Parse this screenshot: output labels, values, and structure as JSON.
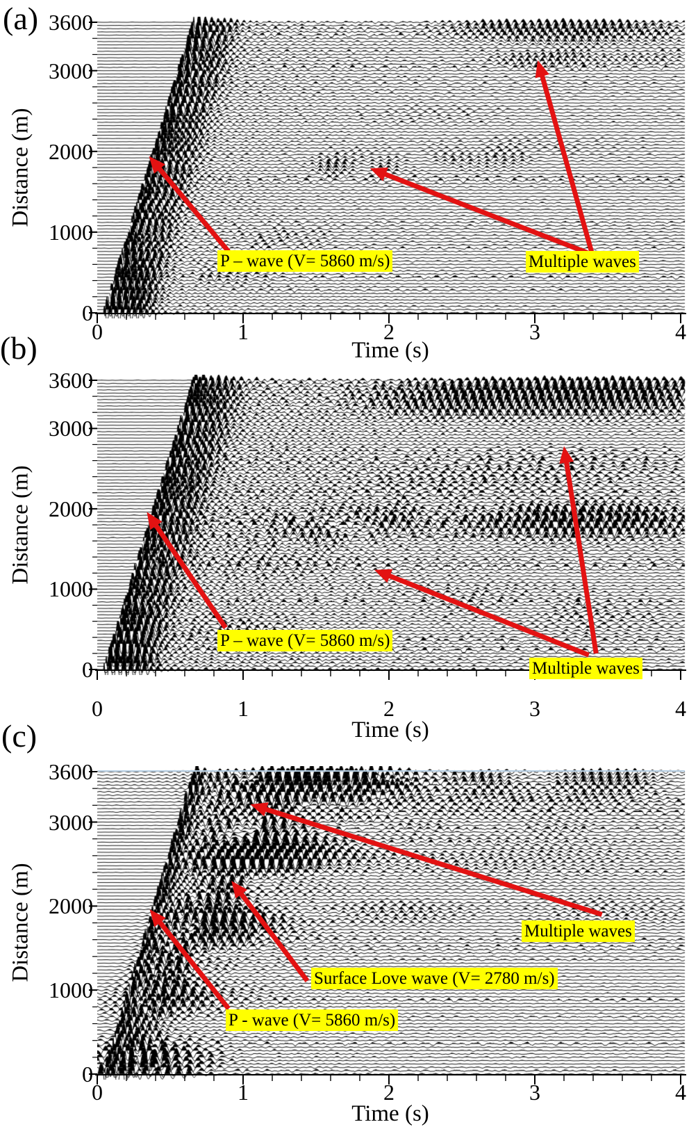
{
  "figure": {
    "background": "#ffffff",
    "trace_color": "#000000",
    "arrow_color": "#e31212",
    "highlight_color": "#ffff00",
    "panels": [
      {
        "label": "(a)",
        "x_axis": {
          "title": "Time (s)",
          "ticks": [
            "0",
            "1",
            "2",
            "3",
            "4"
          ]
        },
        "y_axis": {
          "title": "Distance (m)",
          "ticks": [
            "3600",
            "3000",
            "2000",
            "1000",
            "0"
          ]
        },
        "annotations": [
          {
            "id": "p-wave",
            "text": "P – wave (V= 5860 m/s)",
            "arrows": [
              {
                "tail": [
                  0.9,
                  760
                ],
                "tip": [
                  0.355,
                  1940
                ]
              }
            ]
          },
          {
            "id": "multiple-waves",
            "text": "Multiple waves",
            "arrows": [
              {
                "tail": [
                  3.36,
                  745
                ],
                "tip": [
                  1.87,
                  1790
                ]
              },
              {
                "tail": [
                  3.39,
                  750
                ],
                "tip": [
                  3.02,
                  3130
                ]
              }
            ]
          }
        ]
      },
      {
        "label": "(b)",
        "x_axis": {
          "title": "Time (s)",
          "ticks": [
            "0",
            "1",
            "2",
            "3",
            "4"
          ]
        },
        "y_axis": {
          "title": "Distance (m)",
          "ticks": [
            "3600",
            "3000",
            "2000",
            "1000",
            "0"
          ]
        },
        "annotations": [
          {
            "id": "p-wave",
            "text": "P – wave (V= 5860 m/s)",
            "arrows": [
              {
                "tail": [
                  0.88,
                  520
                ],
                "tip": [
                  0.34,
                  1960
                ]
              }
            ]
          },
          {
            "id": "multiple-waves",
            "text": "Multiple waves",
            "arrows": [
              {
                "tail": [
                  3.37,
                  180
                ],
                "tip": [
                  1.9,
                  1240
                ]
              },
              {
                "tail": [
                  3.42,
                  200
                ],
                "tip": [
                  3.2,
                  2780
                ]
              }
            ]
          }
        ]
      },
      {
        "label": "(c)",
        "x_axis": {
          "title": "Time (s)",
          "ticks": [
            "0",
            "1",
            "2",
            "3",
            "4"
          ]
        },
        "y_axis": {
          "title": "Distance (m)",
          "ticks": [
            "3600",
            "3000",
            "2000",
            "1000",
            "0"
          ]
        },
        "annotations": [
          {
            "id": "multiple-waves",
            "text": "Multiple waves",
            "arrows": [
              {
                "tail": [
                  3.46,
                  1900
                ],
                "tip": [
                  1.05,
                  3210
                ]
              }
            ]
          },
          {
            "id": "surface-love-wave",
            "text": "Surface Love wave (V= 2780 m/s)",
            "arrows": [
              {
                "tail": [
                  1.44,
                  1110
                ],
                "tip": [
                  0.92,
                  2300
                ]
              }
            ]
          },
          {
            "id": "p-wave",
            "text": "P - wave (V= 5860 m/s)",
            "arrows": [
              {
                "tail": [
                  0.9,
                  780
                ],
                "tip": [
                  0.36,
                  1960
                ]
              }
            ]
          }
        ]
      }
    ]
  },
  "chart_data": [
    {
      "type": "line",
      "variant": "seismic_wiggle_record_section",
      "panel": "(a)",
      "title": "",
      "xlabel": "Time (s)",
      "ylabel": "Distance (m)",
      "xlim": [
        0,
        4
      ],
      "ylim": [
        0,
        3600
      ],
      "x_ticks": [
        0,
        1,
        2,
        3,
        4
      ],
      "y_ticks": [
        0,
        1000,
        2000,
        3000,
        3600
      ],
      "x_minor_tick_step": 0.2,
      "y_minor_tick_step": 200,
      "grid": false,
      "legend": "none",
      "num_traces": 91,
      "trace_spacing_m": 40,
      "series": [
        {
          "name": "P-wave direct arrival",
          "velocity_m_per_s": 5860,
          "moveout_line": {
            "x": [
              0,
              0.614
            ],
            "y": [
              0,
              3600
            ]
          }
        },
        {
          "name": "Multiple waves",
          "packets": [
            {
              "time_s": [
                1.7,
                2.6
              ],
              "distance_m": [
                1700,
                2000
              ]
            },
            {
              "time_s": [
                2.6,
                4.0
              ],
              "distance_m": [
                3050,
                3600
              ]
            }
          ]
        }
      ],
      "annotations": [
        {
          "text": "P – wave (V= 5860 m/s)",
          "points_to": [
            {
              "time_s": 0.36,
              "distance_m": 1940
            }
          ]
        },
        {
          "text": "Multiple waves",
          "points_to": [
            {
              "time_s": 1.87,
              "distance_m": 1790
            },
            {
              "time_s": 3.02,
              "distance_m": 3130
            }
          ]
        }
      ]
    },
    {
      "type": "line",
      "variant": "seismic_wiggle_record_section",
      "panel": "(b)",
      "title": "",
      "xlabel": "Time (s)",
      "ylabel": "Distance (m)",
      "xlim": [
        0,
        4
      ],
      "ylim": [
        0,
        3600
      ],
      "x_ticks": [
        0,
        1,
        2,
        3,
        4
      ],
      "y_ticks": [
        0,
        1000,
        2000,
        3000,
        3600
      ],
      "x_minor_tick_step": 0.2,
      "y_minor_tick_step": 200,
      "grid": false,
      "legend": "none",
      "num_traces": 91,
      "trace_spacing_m": 40,
      "series": [
        {
          "name": "P-wave direct arrival",
          "velocity_m_per_s": 5860,
          "moveout_line": {
            "x": [
              0,
              0.614
            ],
            "y": [
              0,
              3600
            ]
          }
        },
        {
          "name": "Multiple waves",
          "packets": [
            {
              "time_s": [
                1.4,
                4.0
              ],
              "distance_m": [
                1550,
                2050
              ]
            },
            {
              "time_s": [
                2.2,
                4.0
              ],
              "distance_m": [
                3100,
                3600
              ]
            }
          ]
        }
      ],
      "annotations": [
        {
          "text": "P – wave (V= 5860 m/s)",
          "points_to": [
            {
              "time_s": 0.34,
              "distance_m": 1960
            }
          ]
        },
        {
          "text": "Multiple waves",
          "points_to": [
            {
              "time_s": 1.9,
              "distance_m": 1240
            },
            {
              "time_s": 3.2,
              "distance_m": 2780
            }
          ]
        }
      ]
    },
    {
      "type": "line",
      "variant": "seismic_wiggle_record_section",
      "panel": "(c)",
      "title": "",
      "xlabel": "Time (s)",
      "ylabel": "Distance (m)",
      "xlim": [
        0,
        4
      ],
      "ylim": [
        0,
        3600
      ],
      "x_ticks": [
        0,
        1,
        2,
        3,
        4
      ],
      "y_ticks": [
        0,
        1000,
        2000,
        3000,
        3600
      ],
      "x_minor_tick_step": 0.2,
      "y_minor_tick_step": 200,
      "grid": false,
      "legend": "none",
      "num_traces": 91,
      "trace_spacing_m": 40,
      "series": [
        {
          "name": "P-wave direct arrival",
          "velocity_m_per_s": 5860,
          "moveout_line": {
            "x": [
              0,
              0.614
            ],
            "y": [
              0,
              3600
            ]
          }
        },
        {
          "name": "Surface Love wave",
          "velocity_m_per_s": 2780,
          "moveout_line": {
            "x": [
              0,
              1.295
            ],
            "y": [
              0,
              3600
            ]
          }
        },
        {
          "name": "Multiple waves",
          "packets": [
            {
              "time_s": [
                0.8,
                4.0
              ],
              "distance_m": [
                3000,
                3600
              ]
            }
          ]
        }
      ],
      "annotations": [
        {
          "text": "Multiple waves",
          "points_to": [
            {
              "time_s": 1.05,
              "distance_m": 3210
            }
          ]
        },
        {
          "text": "Surface Love wave (V= 2780 m/s)",
          "points_to": [
            {
              "time_s": 0.92,
              "distance_m": 2300
            }
          ]
        },
        {
          "text": "P - wave (V= 5860 m/s)",
          "points_to": [
            {
              "time_s": 0.36,
              "distance_m": 1960
            }
          ]
        }
      ]
    }
  ]
}
